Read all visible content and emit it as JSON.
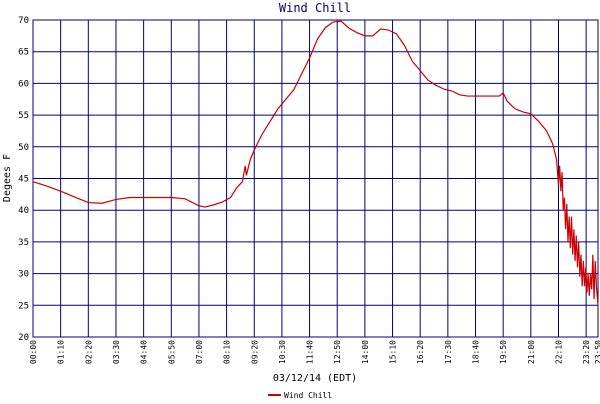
{
  "chart_data": {
    "type": "line",
    "title": "Wind Chill",
    "y_label": "Degees F",
    "x_label": "03/12/14 (EDT)",
    "grid": true,
    "legend": "bottom",
    "xlim": [
      0,
      1430
    ],
    "ylim": [
      20,
      70
    ],
    "yticks": [
      20,
      25,
      30,
      35,
      40,
      45,
      50,
      55,
      60,
      65,
      70
    ],
    "xticks": [
      {
        "value": 0,
        "label": "00:00"
      },
      {
        "value": 70,
        "label": "01:10"
      },
      {
        "value": 140,
        "label": "02:20"
      },
      {
        "value": 210,
        "label": "03:30"
      },
      {
        "value": 280,
        "label": "04:40"
      },
      {
        "value": 350,
        "label": "05:50"
      },
      {
        "value": 420,
        "label": "07:00"
      },
      {
        "value": 490,
        "label": "08:10"
      },
      {
        "value": 560,
        "label": "09:20"
      },
      {
        "value": 630,
        "label": "10:30"
      },
      {
        "value": 700,
        "label": "11:40"
      },
      {
        "value": 770,
        "label": "12:50"
      },
      {
        "value": 840,
        "label": "14:00"
      },
      {
        "value": 910,
        "label": "15:10"
      },
      {
        "value": 980,
        "label": "16:20"
      },
      {
        "value": 1050,
        "label": "17:30"
      },
      {
        "value": 1120,
        "label": "18:40"
      },
      {
        "value": 1190,
        "label": "19:50"
      },
      {
        "value": 1260,
        "label": "21:00"
      },
      {
        "value": 1330,
        "label": "22:10"
      },
      {
        "value": 1400,
        "label": "23:20"
      },
      {
        "value": 1430,
        "label": "23:50"
      }
    ],
    "x": [
      0,
      35,
      70,
      105,
      140,
      175,
      210,
      245,
      280,
      315,
      350,
      385,
      420,
      435,
      455,
      480,
      500,
      515,
      530,
      537,
      540,
      550,
      560,
      580,
      600,
      620,
      640,
      660,
      680,
      700,
      720,
      740,
      760,
      780,
      800,
      820,
      840,
      860,
      880,
      900,
      920,
      940,
      960,
      980,
      1000,
      1020,
      1040,
      1060,
      1080,
      1100,
      1120,
      1140,
      1160,
      1180,
      1190,
      1200,
      1220,
      1240,
      1260,
      1280,
      1300,
      1315,
      1325,
      1330,
      1333,
      1336,
      1339,
      1342,
      1345,
      1348,
      1351,
      1354,
      1357,
      1360,
      1363,
      1366,
      1369,
      1372,
      1375,
      1378,
      1381,
      1384,
      1387,
      1390,
      1393,
      1396,
      1399,
      1402,
      1405,
      1408,
      1411,
      1414,
      1417,
      1420,
      1423,
      1426,
      1430
    ],
    "series": [
      {
        "name": "Wind Chill",
        "color": "#cc0000",
        "values": [
          44.5,
          43.8,
          43,
          42.1,
          41.2,
          41.1,
          41.7,
          42,
          42,
          42,
          42,
          41.8,
          40.7,
          40.5,
          40.8,
          41.3,
          42,
          43.5,
          44.5,
          47,
          45.5,
          48,
          49.5,
          52,
          54,
          56,
          57.5,
          59,
          61.5,
          64,
          67,
          68.8,
          69.7,
          69.8,
          68.7,
          68,
          67.5,
          67.5,
          68.6,
          68.4,
          67.8,
          66,
          63.5,
          62,
          60.5,
          59.7,
          59.1,
          58.8,
          58.2,
          58,
          58,
          58,
          58,
          58,
          58.5,
          57.2,
          56,
          55.5,
          55.2,
          54,
          52.5,
          50.5,
          48,
          44,
          47,
          43,
          46,
          40,
          42,
          37,
          41,
          35,
          39,
          34,
          39,
          33,
          37,
          32,
          36,
          31,
          35,
          29.5,
          33,
          28,
          32,
          28,
          31,
          27,
          30,
          26.5,
          30,
          27.5,
          33,
          26,
          32,
          28,
          25
        ]
      }
    ]
  }
}
